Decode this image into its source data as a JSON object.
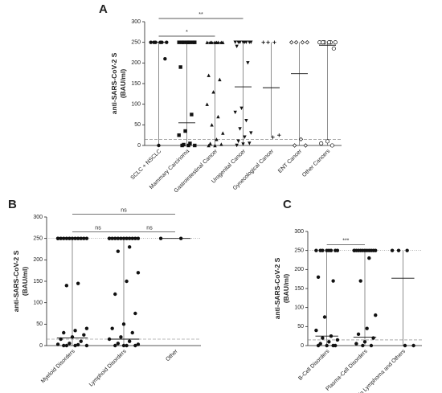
{
  "chart_data": [
    {
      "type": "dotplot",
      "panel_label": "A",
      "ylabel": [
        "anti-SARS-CoV-2 S",
        "(BAU/ml)"
      ],
      "categories": [
        "SCLC + NSCLC",
        "Mammary Carcinoma",
        "Gastrointestinal Cancer",
        "Urogenital Cancer",
        "Gynecological Cancer",
        "ENT Cancer",
        "Other Cancers"
      ],
      "markers": [
        "circle",
        "square",
        "triangle",
        "triangle-down",
        "plus",
        "diamond-open",
        "circle-open"
      ],
      "values": [
        [
          250,
          250,
          250,
          250,
          250,
          250,
          210,
          0
        ],
        [
          250,
          250,
          250,
          250,
          250,
          250,
          250,
          250,
          190,
          75,
          35,
          25,
          5,
          2,
          0,
          0,
          0
        ],
        [
          250,
          250,
          250,
          250,
          250,
          250,
          250,
          250,
          170,
          160,
          130,
          100,
          70,
          50,
          30,
          15,
          5,
          3,
          0,
          0
        ],
        [
          250,
          250,
          250,
          250,
          250,
          250,
          250,
          250,
          240,
          200,
          90,
          80,
          60,
          40,
          30,
          20,
          10,
          5,
          3,
          0
        ],
        [
          250,
          250,
          250,
          25,
          20
        ],
        [
          250,
          250,
          250,
          250,
          15,
          0,
          0
        ],
        [
          250,
          250,
          250,
          250,
          250,
          250,
          235,
          10,
          5,
          0
        ]
      ],
      "medians": [
        250,
        55,
        250,
        142,
        140,
        174,
        243
      ],
      "cutoff": 15,
      "ylim": [
        0,
        300
      ],
      "yticks": [
        0,
        50,
        100,
        150,
        200,
        250,
        300
      ],
      "significance": [
        {
          "from": 0,
          "to": 2,
          "label": "*"
        },
        {
          "from": 0,
          "to": 3,
          "label": "**"
        }
      ]
    },
    {
      "type": "dotplot",
      "panel_label": "B",
      "ylabel": [
        "anti-SARS-CoV-2 S",
        "(BAU/ml)"
      ],
      "categories": [
        "Myeloid Disorders",
        "Lymphoid Disorders",
        "Other"
      ],
      "markers": [
        "circle",
        "circle",
        "circle"
      ],
      "values": [
        [
          250,
          250,
          250,
          250,
          250,
          250,
          250,
          250,
          250,
          250,
          250,
          250,
          145,
          140,
          40,
          35,
          30,
          25,
          20,
          15,
          10,
          5,
          3,
          2,
          0,
          0,
          0,
          0
        ],
        [
          250,
          250,
          250,
          250,
          250,
          250,
          250,
          250,
          250,
          250,
          250,
          250,
          230,
          220,
          170,
          150,
          120,
          75,
          50,
          40,
          30,
          20,
          15,
          10,
          5,
          3,
          0,
          0,
          0,
          0
        ],
        [
          250,
          250
        ]
      ],
      "medians": [
        18,
        15,
        250
      ],
      "cutoff": 15,
      "upper_limit": 250,
      "ylim": [
        0,
        300
      ],
      "yticks": [
        0,
        50,
        100,
        150,
        200,
        250,
        300
      ],
      "significance": [
        {
          "from": 0,
          "to": 1,
          "label": "ns"
        },
        {
          "from": 1,
          "to": 2,
          "label": "ns"
        },
        {
          "from": 0,
          "to": 2,
          "label": "ns"
        }
      ]
    },
    {
      "type": "dotplot",
      "panel_label": "C",
      "ylabel": [
        "anti-SARS-CoV-2 S",
        "(BAU/ml)"
      ],
      "categories": [
        "B-Cell Disorders",
        "Plasma-Cell Disorders",
        "Hodgkin Lymphoma and Others"
      ],
      "markers": [
        "circle",
        "circle",
        "circle"
      ],
      "values": [
        [
          250,
          250,
          250,
          250,
          250,
          250,
          250,
          250,
          180,
          170,
          75,
          40,
          25,
          20,
          15,
          10,
          5,
          0,
          0,
          0,
          0
        ],
        [
          250,
          250,
          250,
          250,
          250,
          250,
          250,
          250,
          250,
          250,
          250,
          250,
          230,
          170,
          80,
          45,
          30,
          20,
          10,
          5,
          0,
          0
        ],
        [
          250,
          250,
          250,
          0,
          0
        ]
      ],
      "medians": [
        25,
        22,
        177
      ],
      "cutoff": 15,
      "upper_limit": 250,
      "ylim": [
        0,
        300
      ],
      "yticks": [
        0,
        50,
        100,
        150,
        200,
        250,
        300
      ],
      "significance": [
        {
          "from": 0,
          "to": 1,
          "label": "***"
        }
      ]
    }
  ]
}
